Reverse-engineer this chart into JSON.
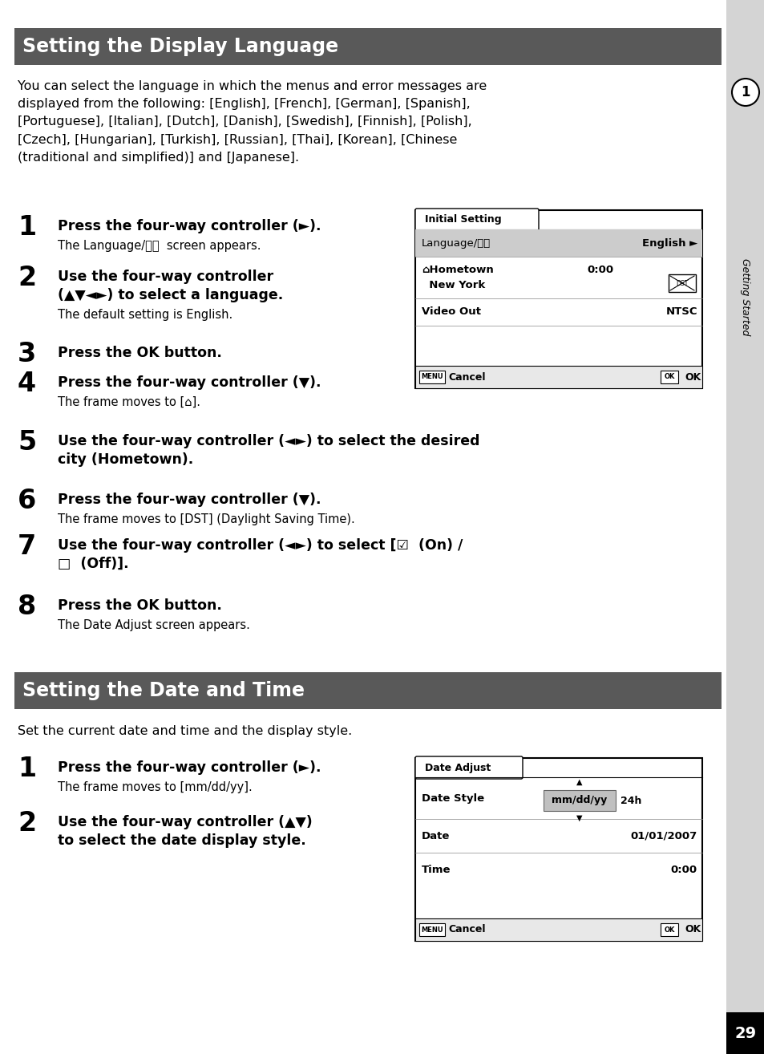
{
  "page_bg": "#ffffff",
  "sidebar_bg": "#d4d4d4",
  "header_bg": "#595959",
  "header_text_color": "#ffffff",
  "body_text_color": "#000000",
  "page_number": "29",
  "header1_text": "Setting the Display Language",
  "header2_text": "Setting the Date and Time",
  "intro_text1": "You can select the language in which the menus and error messages are\ndisplayed from the following: [English], [French], [German], [Spanish],\n[Portuguese], [Italian], [Dutch], [Danish], [Swedish], [Finnish], [Polish],\n[Czech], [Hungarian], [Turkish], [Russian], [Thai], [Korean], [Chinese\n(traditional and simplified)] and [Japanese].",
  "intro_text2": "Set the current date and time and the display style.",
  "screen1_title": "Initial Setting",
  "screen2_title": "Date Adjust"
}
